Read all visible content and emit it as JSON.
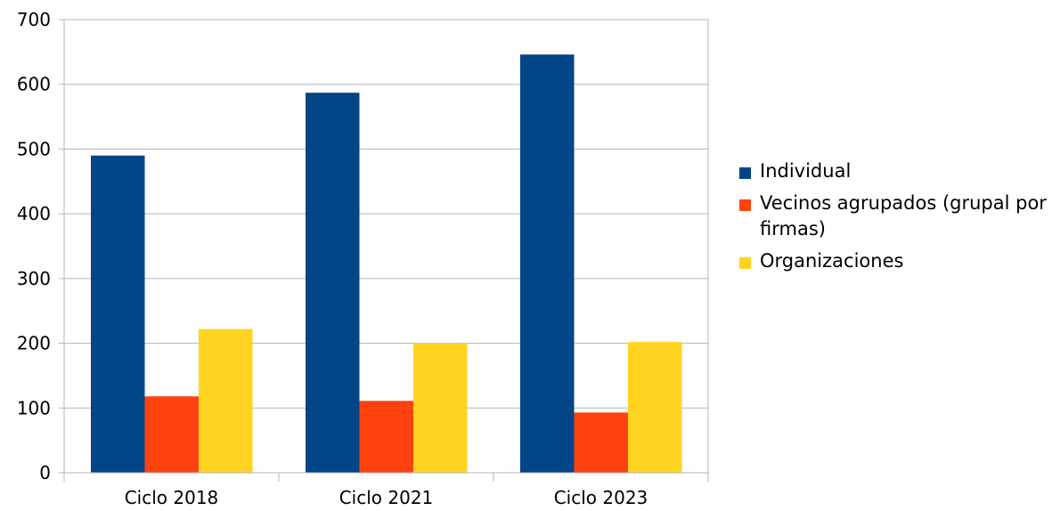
{
  "chart_data": {
    "type": "bar",
    "categories": [
      "Ciclo 2018",
      "Ciclo 2021",
      "Ciclo 2023"
    ],
    "series": [
      {
        "name": "Individual",
        "values": [
          490,
          587,
          646
        ],
        "color": "#004586"
      },
      {
        "name": "Vecinos agrupados (grupal por firmas)",
        "values": [
          118,
          111,
          93
        ],
        "color": "#ff420e"
      },
      {
        "name": "Organizaciones",
        "values": [
          222,
          200,
          202
        ],
        "color": "#ffd320"
      }
    ],
    "ylim": [
      0,
      700
    ],
    "yticks": [
      0,
      100,
      200,
      300,
      400,
      500,
      600,
      700
    ],
    "grid": true,
    "legend_position": "right"
  }
}
